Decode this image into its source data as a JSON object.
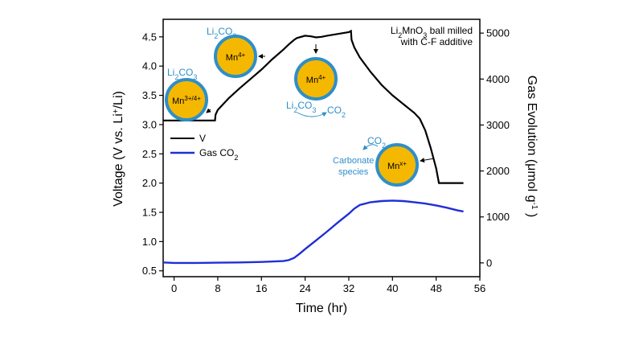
{
  "chart_data": {
    "type": "line",
    "title": "",
    "xlabel": "Time (hr)",
    "ylabel_left": "Voltage (V vs. Li⁺/Li)",
    "ylabel_right": "Gas Evolution (μmol g⁻¹ )",
    "xlim": [
      -2,
      56
    ],
    "ylim_left": [
      0.4,
      4.8
    ],
    "ylim_right": [
      -300,
      5300
    ],
    "x_ticks": [
      0,
      8,
      16,
      24,
      32,
      40,
      48,
      56
    ],
    "y_left_ticks": [
      0.5,
      1.0,
      1.5,
      2.0,
      2.5,
      3.0,
      3.5,
      4.0,
      4.5
    ],
    "y_right_ticks": [
      0,
      1000,
      2000,
      3000,
      4000,
      5000
    ],
    "grid": false,
    "legend_position": "middle-left",
    "series": [
      {
        "name": "V",
        "axis": "left",
        "color": "#000000",
        "x": [
          -2,
          7.5,
          7.6,
          8,
          10,
          12,
          14,
          16,
          18,
          20,
          21,
          22,
          22.5,
          24,
          25,
          26,
          27,
          28,
          30,
          32,
          32.4,
          32.5,
          33,
          34,
          36,
          38,
          40,
          42,
          44,
          45,
          46,
          47,
          48,
          48.5,
          53
        ],
        "y": [
          3.07,
          3.07,
          3.17,
          3.25,
          3.45,
          3.62,
          3.78,
          3.94,
          4.12,
          4.28,
          4.37,
          4.45,
          4.48,
          4.52,
          4.51,
          4.49,
          4.5,
          4.52,
          4.55,
          4.58,
          4.6,
          4.45,
          4.32,
          4.15,
          3.9,
          3.68,
          3.5,
          3.35,
          3.2,
          3.1,
          2.9,
          2.6,
          2.25,
          2.0,
          2.0
        ]
      },
      {
        "name": "Gas CO₂",
        "axis": "right",
        "color": "#1f2fd6",
        "x": [
          -2,
          0,
          4,
          8,
          12,
          16,
          20,
          21,
          22,
          23,
          24,
          26,
          28,
          30,
          32,
          33,
          34,
          36,
          38,
          40,
          42,
          44,
          46,
          48,
          50,
          52,
          53
        ],
        "y": [
          10,
          0,
          0,
          5,
          10,
          20,
          40,
          60,
          110,
          200,
          300,
          490,
          680,
          880,
          1070,
          1180,
          1260,
          1320,
          1345,
          1355,
          1345,
          1320,
          1290,
          1250,
          1200,
          1140,
          1120
        ]
      }
    ],
    "annotations": [
      "Li₂MnO₃ ball milled",
      "with C-F additive",
      "Li₂CO₃",
      "Mn³⁺/⁴⁺",
      "Mn⁴⁺",
      "CO₂",
      "Carbonate",
      "species",
      "Mnˣ⁺"
    ]
  },
  "colors": {
    "particle_fill": "#f5b800",
    "particle_stroke": "#2e8fc8",
    "annotation_blue": "#2e8fc8"
  }
}
